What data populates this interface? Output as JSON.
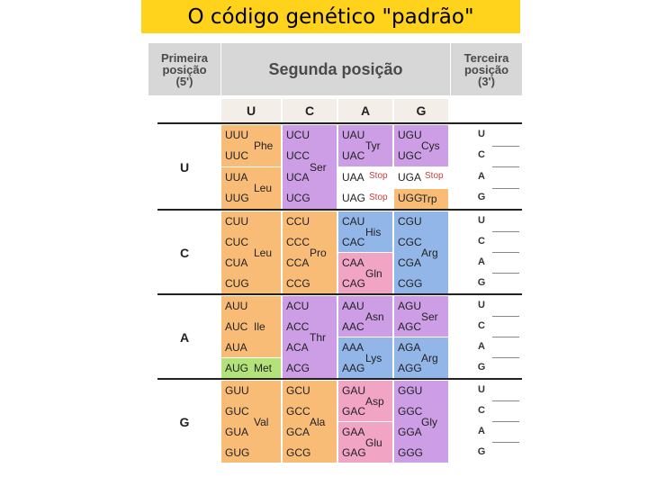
{
  "title": "O código genético \"padrão\"",
  "headers": {
    "first": [
      "Primeira",
      "posição",
      "(5')"
    ],
    "second": "Segunda posição",
    "third": [
      "Terceira",
      "posição",
      "(3')"
    ]
  },
  "columns": [
    "U",
    "C",
    "A",
    "G"
  ],
  "rows": [
    {
      "label": "U",
      "third": [
        "U",
        "C",
        "A",
        "G"
      ],
      "blocks": [
        {
          "codons": [
            "UUU",
            "UUC",
            "UUA",
            "UUG"
          ],
          "groups": [
            {
              "aa": "Phe",
              "rows": [
                0,
                1
              ],
              "color": "#f8bc76"
            },
            {
              "aa": "Leu",
              "rows": [
                2,
                3
              ],
              "color": "#f8bc76"
            }
          ]
        },
        {
          "codons": [
            "UCU",
            "UCC",
            "UCA",
            "UCG"
          ],
          "groups": [
            {
              "aa": "Ser",
              "rows": [
                0,
                3
              ],
              "color": "#cd9ee6"
            }
          ]
        },
        {
          "codons": [
            "UAU",
            "UAC",
            "UAA",
            "UAG"
          ],
          "groups": [
            {
              "aa": "Tyr",
              "rows": [
                0,
                1
              ],
              "color": "#cd9ee6"
            },
            {
              "aa": "Stop",
              "rows": [
                2,
                2
              ],
              "color": "#ffffff",
              "stop": true
            },
            {
              "aa": "Stop",
              "rows": [
                3,
                3
              ],
              "color": "#ffffff",
              "stop": true
            }
          ]
        },
        {
          "codons": [
            "UGU",
            "UGC",
            "UGA",
            "UGG"
          ],
          "groups": [
            {
              "aa": "Cys",
              "rows": [
                0,
                1
              ],
              "color": "#cd9ee6"
            },
            {
              "aa": "Stop",
              "rows": [
                2,
                2
              ],
              "color": "#ffffff",
              "stop": true
            },
            {
              "aa": "Trp",
              "rows": [
                3,
                3
              ],
              "color": "#f8bc76"
            }
          ]
        }
      ]
    },
    {
      "label": "C",
      "third": [
        "U",
        "C",
        "A",
        "G"
      ],
      "blocks": [
        {
          "codons": [
            "CUU",
            "CUC",
            "CUA",
            "CUG"
          ],
          "groups": [
            {
              "aa": "Leu",
              "rows": [
                0,
                3
              ],
              "color": "#f8bc76"
            }
          ]
        },
        {
          "codons": [
            "CCU",
            "CCC",
            "CCA",
            "CCG"
          ],
          "groups": [
            {
              "aa": "Pro",
              "rows": [
                0,
                3
              ],
              "color": "#f8bc76"
            }
          ]
        },
        {
          "codons": [
            "CAU",
            "CAC",
            "CAA",
            "CAG"
          ],
          "groups": [
            {
              "aa": "His",
              "rows": [
                0,
                1
              ],
              "color": "#92b6e8"
            },
            {
              "aa": "Gln",
              "rows": [
                2,
                3
              ],
              "color": "#f2a4c4"
            }
          ]
        },
        {
          "codons": [
            "CGU",
            "CGC",
            "CGA",
            "CGG"
          ],
          "groups": [
            {
              "aa": "Arg",
              "rows": [
                0,
                3
              ],
              "color": "#92b6e8"
            }
          ]
        }
      ]
    },
    {
      "label": "A",
      "third": [
        "U",
        "C",
        "A",
        "G"
      ],
      "blocks": [
        {
          "codons": [
            "AUU",
            "AUC",
            "AUA",
            "AUG"
          ],
          "groups": [
            {
              "aa": "Ile",
              "rows": [
                0,
                2
              ],
              "color": "#f8bc76"
            },
            {
              "aa": "Met",
              "rows": [
                3,
                3
              ],
              "color": "#b4e27a"
            }
          ]
        },
        {
          "codons": [
            "ACU",
            "ACC",
            "ACA",
            "ACG"
          ],
          "groups": [
            {
              "aa": "Thr",
              "rows": [
                0,
                3
              ],
              "color": "#cd9ee6"
            }
          ]
        },
        {
          "codons": [
            "AAU",
            "AAC",
            "AAA",
            "AAG"
          ],
          "groups": [
            {
              "aa": "Asn",
              "rows": [
                0,
                1
              ],
              "color": "#cd9ee6"
            },
            {
              "aa": "Lys",
              "rows": [
                2,
                3
              ],
              "color": "#92b6e8"
            }
          ]
        },
        {
          "codons": [
            "AGU",
            "AGC",
            "AGA",
            "AGG"
          ],
          "groups": [
            {
              "aa": "Ser",
              "rows": [
                0,
                1
              ],
              "color": "#cd9ee6"
            },
            {
              "aa": "Arg",
              "rows": [
                2,
                3
              ],
              "color": "#92b6e8"
            }
          ]
        }
      ]
    },
    {
      "label": "G",
      "third": [
        "U",
        "C",
        "A",
        "G"
      ],
      "blocks": [
        {
          "codons": [
            "GUU",
            "GUC",
            "GUA",
            "GUG"
          ],
          "groups": [
            {
              "aa": "Val",
              "rows": [
                0,
                3
              ],
              "color": "#f8bc76"
            }
          ]
        },
        {
          "codons": [
            "GCU",
            "GCC",
            "GCA",
            "GCG"
          ],
          "groups": [
            {
              "aa": "Ala",
              "rows": [
                0,
                3
              ],
              "color": "#f8bc76"
            }
          ]
        },
        {
          "codons": [
            "GAU",
            "GAC",
            "GAA",
            "GAG"
          ],
          "groups": [
            {
              "aa": "Asp",
              "rows": [
                0,
                1
              ],
              "color": "#f2a4c4"
            },
            {
              "aa": "Glu",
              "rows": [
                2,
                3
              ],
              "color": "#f2a4c4"
            }
          ]
        },
        {
          "codons": [
            "GGU",
            "GGC",
            "GGA",
            "GGG"
          ],
          "groups": [
            {
              "aa": "Gly",
              "rows": [
                0,
                3
              ],
              "color": "#cd9ee6"
            }
          ]
        }
      ]
    }
  ]
}
